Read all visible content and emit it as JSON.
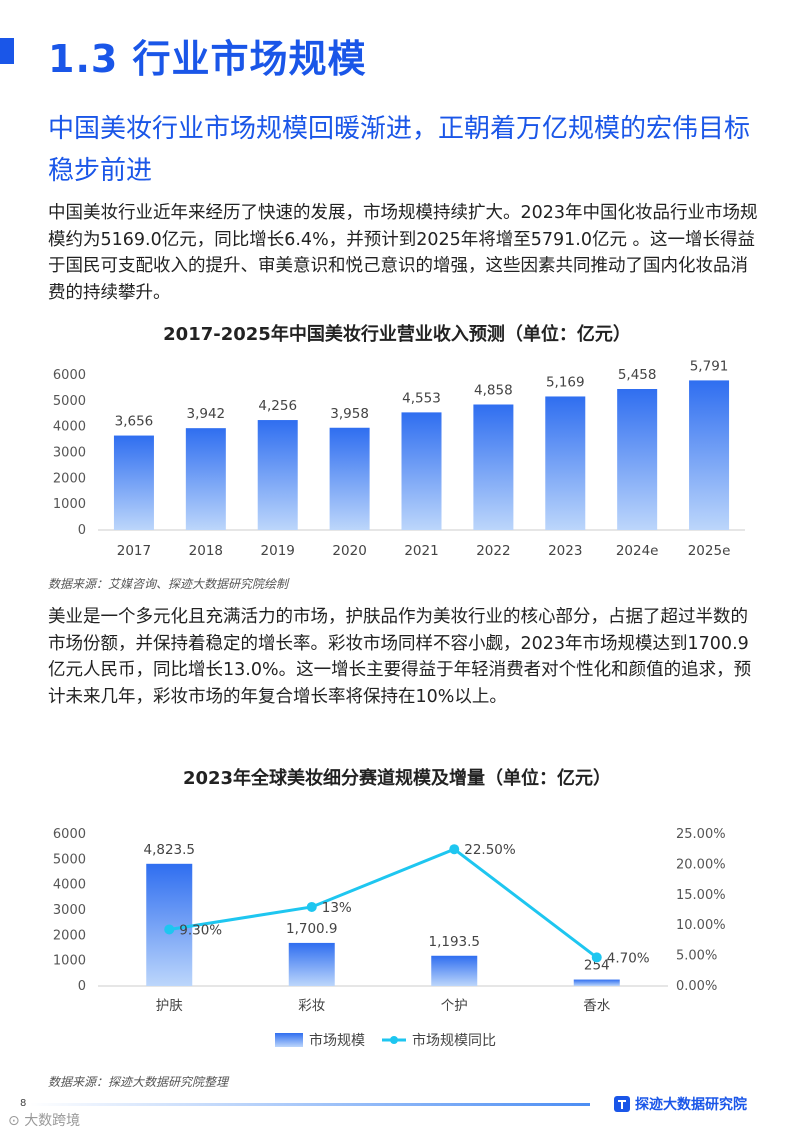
{
  "header": {
    "title": "1.3 行业市场规模",
    "subtitle": "中国美妆行业市场规模回暖渐进，正朝着万亿规模的宏伟目标稳步前进"
  },
  "paragraphs": [
    "中国美妆行业近年来经历了快速的发展，市场规模持续扩大。2023年中国化妆品行业市场规模约为5169.0亿元，同比增长6.4%，并预计到2025年将增至5791.0亿元 。这一增长得益于国民可支配收入的提升、审美意识和悦己意识的增强，这些因素共同推动了国内化妆品消费的持续攀升。",
    "美业是一个多元化且充满活力的市场，护肤品作为美妆行业的核心部分，占据了超过半数的市场份额，并保持着稳定的增长率。彩妆市场同样不容小觑，2023年市场规模达到1700.9亿元人民币，同比增长13.0%。这一增长主要得益于年轻消费者对个性化和颜值的追求，预计未来几年，彩妆市场的年复合增长率将保持在10%以上。"
  ],
  "colors": {
    "accent": "#1a56e8",
    "bar_top": "#2f6ef0",
    "bar_bottom": "#bcd6fb",
    "line": "#1ec6f0"
  },
  "chart_data": [
    {
      "type": "bar",
      "title": "2017-2025年中国美妆行业营业收入预测（单位：亿元）",
      "categories": [
        "2017",
        "2018",
        "2019",
        "2020",
        "2021",
        "2022",
        "2023",
        "2024e",
        "2025e"
      ],
      "values": [
        3656,
        3942,
        4256,
        3958,
        4553,
        4858,
        5169,
        5458,
        5791
      ],
      "value_labels": [
        "3,656",
        "3,942",
        "4,256",
        "3,958",
        "4,553",
        "4,858",
        "5,169",
        "5,458",
        "5,791"
      ],
      "yticks": [
        "0",
        "1000",
        "2000",
        "3000",
        "4000",
        "5000",
        "6000"
      ],
      "ylim": [
        0,
        6000
      ],
      "source": "数据来源：艾媒咨询、探迹大数据研究院绘制"
    },
    {
      "type": "bar+line",
      "title": "2023年全球美妆细分赛道规模及增量（单位：亿元）",
      "categories": [
        "护肤",
        "彩妆",
        "个护",
        "香水"
      ],
      "series": [
        {
          "name": "市场规模",
          "type": "bar",
          "values": [
            4823.5,
            1700.9,
            1193.5,
            254
          ],
          "value_labels": [
            "4,823.5",
            "1,700.9",
            "1,193.5",
            "254"
          ]
        },
        {
          "name": "市场规模同比",
          "type": "line",
          "values": [
            9.3,
            13,
            22.5,
            4.7
          ],
          "value_labels": [
            "9.30%",
            "13%",
            "22.50%",
            "4.70%"
          ]
        }
      ],
      "yticks_left": [
        "0",
        "1000",
        "2000",
        "3000",
        "4000",
        "5000",
        "6000"
      ],
      "ylim_left": [
        0,
        6000
      ],
      "yticks_right": [
        "0.00%",
        "5.00%",
        "10.00%",
        "15.00%",
        "20.00%",
        "25.00%"
      ],
      "ylim_right": [
        0,
        25
      ],
      "legend_position": "bottom",
      "source": "数据来源：探迹大数据研究院整理"
    }
  ],
  "footer": {
    "page_number": "8",
    "brand": "探迹大数据研究院",
    "watermark": "大数跨境"
  }
}
